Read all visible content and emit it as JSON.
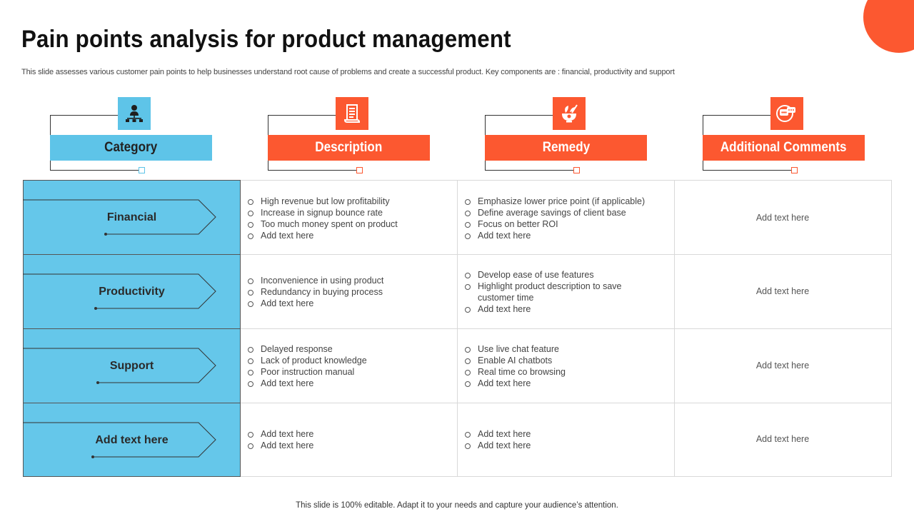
{
  "slide": {
    "title": "Pain points analysis for product management",
    "subtitle": "This slide assesses various customer pain points to help businesses understand root cause of problems and create a successful product. Key components are : financial, productivity and support",
    "footer": "This slide is 100% editable. Adapt it to your needs and capture your audience’s attention."
  },
  "colors": {
    "accent": "#fc5830",
    "category_blue": "#65c7ea",
    "header_blue": "#5ec4e8"
  },
  "headers": [
    {
      "label": "Category",
      "icon": "org-chart-icon",
      "color": "blue"
    },
    {
      "label": "Description",
      "icon": "document-icon",
      "color": "orange"
    },
    {
      "label": "Remedy",
      "icon": "herbal-mortar-icon",
      "color": "orange"
    },
    {
      "label": "Additional Comments",
      "icon": "chat-comments-icon",
      "color": "orange"
    }
  ],
  "rows": [
    {
      "category": "Financial",
      "description": [
        "High revenue  but low profitability",
        "Increase in signup bounce rate",
        "Too much money spent on product",
        "Add text here"
      ],
      "remedy": [
        "Emphasize lower price point (if applicable)",
        "Define average  savings of client base",
        "Focus on better ROI",
        "Add text here"
      ],
      "comment": "Add text here"
    },
    {
      "category": "Productivity",
      "description": [
        "Inconvenience  in using product",
        "Redundancy  in buying process",
        "Add text here"
      ],
      "remedy": [
        "Develop  ease of use features",
        "Highlight product description to save customer time",
        "Add text here"
      ],
      "comment": "Add text here"
    },
    {
      "category": "Support",
      "description": [
        "Delayed response",
        "Lack of product knowledge",
        "Poor instruction manual",
        "Add text here"
      ],
      "remedy": [
        "Use live  chat feature",
        "Enable AI chatbots",
        "Real time co browsing",
        "Add text here"
      ],
      "comment": "Add text here"
    },
    {
      "category": "Add text here",
      "description": [
        "Add text here",
        "Add text here"
      ],
      "remedy": [
        "Add text here",
        "Add text here"
      ],
      "comment": "Add text here"
    }
  ]
}
